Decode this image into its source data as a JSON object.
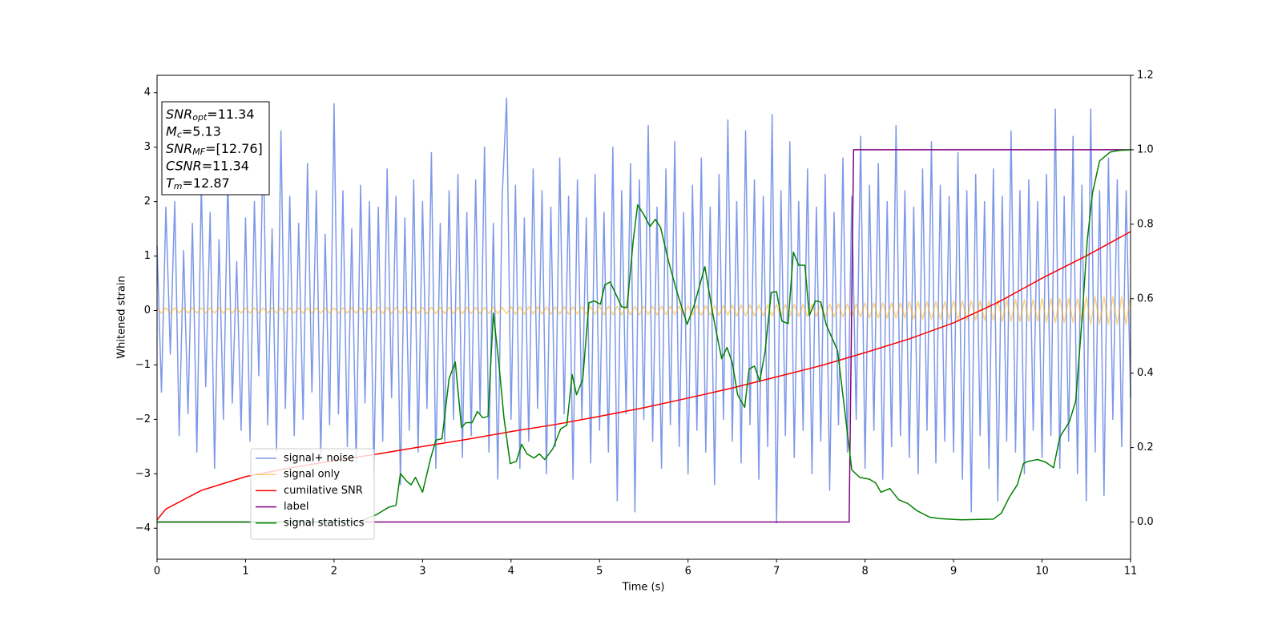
{
  "chart_data": {
    "type": "line",
    "xlabel": "Time (s)",
    "ylabel": "Whitened strain",
    "xlim": [
      0,
      11
    ],
    "ylim": [
      -4.57,
      4.32
    ],
    "y2lim": [
      -0.1,
      1.2
    ],
    "xticks": [
      0,
      1,
      2,
      3,
      4,
      5,
      6,
      7,
      8,
      9,
      10,
      11
    ],
    "yticks": [
      {
        "value": -4,
        "label": "−4"
      },
      {
        "value": -3,
        "label": "−3"
      },
      {
        "value": -2,
        "label": "−2"
      },
      {
        "value": -1,
        "label": "−1"
      },
      0,
      1,
      2,
      3,
      4
    ],
    "y2ticks": [
      {
        "value": 0,
        "label": "0.0"
      },
      0.2,
      0.4,
      0.6,
      0.8,
      {
        "value": 1,
        "label": "1.0"
      },
      1.2
    ],
    "legend": "lower left",
    "annotation": [
      {
        "main": "SNR",
        "sub": "opt",
        "rest": "=11.34"
      },
      {
        "main": "M",
        "sub": "c",
        "rest": "=5.13"
      },
      {
        "main": "SNR",
        "sub": "MF",
        "rest": "=[12.76]"
      },
      {
        "main": "CSNR",
        "rest": "=11.34"
      },
      {
        "main": "T",
        "sub": "m",
        "rest": "=12.87"
      }
    ],
    "x": [
      0,
      0.05,
      0.1,
      0.15,
      0.2,
      0.25,
      0.3,
      0.35,
      0.4,
      0.45,
      0.5,
      0.55,
      0.6,
      0.65,
      0.7,
      0.75,
      0.8,
      0.85,
      0.9,
      0.95,
      1,
      1.05,
      1.1,
      1.15,
      1.2,
      1.25,
      1.3,
      1.35,
      1.4,
      1.45,
      1.5,
      1.55,
      1.6,
      1.65,
      1.7,
      1.75,
      1.8,
      1.85,
      1.9,
      1.95,
      2,
      2.05,
      2.1,
      2.15,
      2.2,
      2.25,
      2.3,
      2.35,
      2.4,
      2.45,
      2.5,
      2.55,
      2.6,
      2.65,
      2.7,
      2.75,
      2.8,
      2.85,
      2.9,
      2.95,
      3,
      3.05,
      3.1,
      3.15,
      3.2,
      3.25,
      3.3,
      3.35,
      3.4,
      3.45,
      3.5,
      3.55,
      3.6,
      3.65,
      3.7,
      3.75,
      3.8,
      3.85,
      3.9,
      3.95,
      4,
      4.05,
      4.1,
      4.15,
      4.2,
      4.25,
      4.3,
      4.35,
      4.4,
      4.45,
      4.5,
      4.55,
      4.6,
      4.65,
      4.7,
      4.75,
      4.8,
      4.85,
      4.9,
      4.95,
      5,
      5.05,
      5.1,
      5.15,
      5.2,
      5.25,
      5.3,
      5.35,
      5.4,
      5.45,
      5.5,
      5.55,
      5.6,
      5.65,
      5.7,
      5.75,
      5.8,
      5.85,
      5.9,
      5.95,
      6,
      6.05,
      6.1,
      6.15,
      6.2,
      6.25,
      6.3,
      6.35,
      6.4,
      6.45,
      6.5,
      6.55,
      6.6,
      6.65,
      6.7,
      6.75,
      6.8,
      6.85,
      6.9,
      6.95,
      7,
      7.05,
      7.1,
      7.15,
      7.2,
      7.25,
      7.3,
      7.35,
      7.4,
      7.45,
      7.5,
      7.55,
      7.6,
      7.65,
      7.7,
      7.75,
      7.8,
      7.85,
      7.9,
      7.95,
      8,
      8.05,
      8.1,
      8.15,
      8.2,
      8.25,
      8.3,
      8.35,
      8.4,
      8.45,
      8.5,
      8.55,
      8.6,
      8.65,
      8.7,
      8.75,
      8.8,
      8.85,
      8.9,
      8.95,
      9,
      9.05,
      9.1,
      9.15,
      9.2,
      9.25,
      9.3,
      9.35,
      9.4,
      9.45,
      9.5,
      9.55,
      9.6,
      9.65,
      9.7,
      9.75,
      9.8,
      9.85,
      9.9,
      9.95,
      10,
      10.05,
      10.1,
      10.15,
      10.2,
      10.25,
      10.3,
      10.35,
      10.4,
      10.45,
      10.5,
      10.55,
      10.6,
      10.65,
      10.7,
      10.75,
      10.8,
      10.85,
      10.9,
      10.95,
      11
    ],
    "series": [
      {
        "name": "signal+ noise",
        "color": "#6f8de6",
        "opacity": 0.9,
        "values": [
          1.2,
          -1.5,
          1.9,
          -0.8,
          2.0,
          -2.3,
          1.1,
          -1.9,
          1.6,
          -2.6,
          2.3,
          -1.4,
          1.8,
          -2.9,
          1.3,
          -2.0,
          2.5,
          -1.7,
          0.9,
          -2.2,
          1.7,
          -2.4,
          2.0,
          -1.2,
          3.2,
          -2.1,
          1.5,
          -2.6,
          3.3,
          -1.8,
          2.1,
          -2.3,
          1.6,
          -2.0,
          2.7,
          -1.5,
          2.2,
          -2.7,
          1.4,
          -2.1,
          3.8,
          -1.9,
          2.2,
          -2.5,
          1.5,
          -2.8,
          2.3,
          -1.7,
          2.0,
          -3.0,
          1.9,
          -2.4,
          2.6,
          -1.6,
          2.1,
          -3.2,
          1.7,
          -2.2,
          2.4,
          -2.6,
          2.0,
          -1.8,
          2.9,
          -2.9,
          1.6,
          -2.4,
          2.2,
          -2.0,
          2.5,
          -2.7,
          1.8,
          -2.3,
          2.4,
          -1.9,
          3.0,
          -2.6,
          1.6,
          -3.1,
          2.1,
          3.9,
          -2.0,
          2.3,
          -2.9,
          1.7,
          -2.4,
          2.6,
          -1.8,
          2.2,
          -3.0,
          1.9,
          -2.5,
          2.8,
          -1.9,
          2.1,
          -3.1,
          2.4,
          -2.0,
          1.7,
          -2.8,
          2.5,
          -2.2,
          1.8,
          -2.6,
          3.0,
          -3.5,
          2.2,
          -1.9,
          2.7,
          -3.7,
          2.4,
          -2.0,
          3.4,
          -2.4,
          1.9,
          -2.9,
          2.6,
          -2.1,
          3.1,
          -2.5,
          1.8,
          -3.0,
          2.3,
          -2.2,
          2.8,
          -2.6,
          1.9,
          -3.2,
          2.5,
          -2.0,
          3.5,
          -2.4,
          2.0,
          -2.8,
          3.3,
          -2.1,
          2.4,
          -3.1,
          2.1,
          -2.5,
          3.6,
          -3.9,
          2.2,
          -2.3,
          3.1,
          -2.7,
          2.0,
          -2.2,
          2.6,
          -3.0,
          1.9,
          -2.4,
          2.5,
          -3.3,
          1.8,
          -2.1,
          2.8,
          -2.6,
          2.1,
          -2.0,
          3.2,
          -2.9,
          2.3,
          -2.2,
          2.7,
          -3.1,
          2.0,
          -2.5,
          3.4,
          -2.3,
          2.2,
          -2.7,
          1.9,
          -3.0,
          2.6,
          -2.2,
          3.1,
          -2.8,
          2.3,
          -2.4,
          2.1,
          -2.6,
          2.9,
          -3.1,
          2.2,
          -3.7,
          2.5,
          -2.3,
          2.0,
          -2.9,
          2.6,
          -3.5,
          2.1,
          -2.4,
          3.3,
          -2.6,
          2.2,
          -3.0,
          2.4,
          -2.2,
          2.0,
          -2.7,
          2.5,
          -2.3,
          3.7,
          -2.9,
          2.1,
          -2.4,
          3.2,
          -3.0,
          2.3,
          -3.5,
          3.7,
          -2.6,
          2.2,
          -3.4,
          2.8,
          -2.0,
          2.4,
          -2.5,
          2.2,
          -1.6
        ]
      },
      {
        "name": "signal only",
        "color": "#ffa500",
        "opacity": 0.5,
        "values": [
          0.05,
          -0.05,
          0.05,
          -0.05,
          0.05,
          -0.05,
          0.05,
          -0.05,
          0.05,
          -0.05,
          0.05,
          -0.05,
          0.05,
          -0.05,
          0.05,
          -0.05,
          0.05,
          -0.05,
          0.05,
          -0.05,
          0.05,
          -0.05,
          0.05,
          -0.05,
          0.05,
          -0.05,
          0.05,
          -0.05,
          0.05,
          -0.05,
          0.05,
          -0.05,
          0.05,
          -0.05,
          0.05,
          -0.05,
          0.05,
          -0.05,
          0.05,
          -0.05,
          0.05,
          -0.05,
          0.05,
          -0.05,
          0.05,
          -0.05,
          0.05,
          -0.05,
          0.05,
          -0.05,
          0.06,
          -0.06,
          0.06,
          -0.06,
          0.06,
          -0.06,
          0.06,
          -0.06,
          0.06,
          -0.06,
          0.06,
          -0.06,
          0.06,
          -0.06,
          0.06,
          -0.06,
          0.06,
          -0.06,
          0.06,
          -0.06,
          0.06,
          -0.06,
          0.06,
          -0.06,
          0.06,
          -0.06,
          0.06,
          -0.06,
          0.06,
          -0.06,
          0.07,
          -0.07,
          0.07,
          -0.07,
          0.07,
          -0.07,
          0.07,
          -0.07,
          0.07,
          -0.07,
          0.07,
          -0.07,
          0.07,
          -0.07,
          0.07,
          -0.07,
          0.07,
          -0.07,
          0.07,
          -0.07,
          0.08,
          -0.08,
          0.08,
          -0.08,
          0.08,
          -0.08,
          0.08,
          -0.08,
          0.08,
          -0.08,
          0.08,
          -0.08,
          0.08,
          -0.08,
          0.08,
          -0.08,
          0.08,
          -0.08,
          0.08,
          -0.08,
          0.09,
          -0.09,
          0.09,
          -0.09,
          0.09,
          -0.09,
          0.09,
          -0.09,
          0.09,
          -0.09,
          0.1,
          -0.1,
          0.1,
          -0.1,
          0.1,
          -0.1,
          0.1,
          -0.1,
          0.1,
          -0.1,
          0.11,
          -0.11,
          0.11,
          -0.11,
          0.11,
          -0.11,
          0.11,
          -0.11,
          0.11,
          -0.11,
          0.12,
          -0.12,
          0.12,
          -0.12,
          0.12,
          -0.12,
          0.12,
          -0.12,
          0.12,
          -0.12,
          0.14,
          -0.14,
          0.14,
          -0.14,
          0.14,
          -0.14,
          0.14,
          -0.14,
          0.14,
          -0.14,
          0.16,
          -0.16,
          0.16,
          -0.16,
          0.16,
          -0.16,
          0.16,
          -0.16,
          0.16,
          -0.16,
          0.18,
          -0.18,
          0.18,
          -0.18,
          0.18,
          -0.18,
          0.18,
          -0.18,
          0.18,
          -0.18,
          0.2,
          -0.2,
          0.2,
          -0.2,
          0.2,
          -0.2,
          0.2,
          -0.2,
          0.2,
          -0.2,
          0.22,
          -0.22,
          0.22,
          -0.22,
          0.22,
          -0.22,
          0.22,
          -0.22,
          0.22,
          -0.22,
          0.25,
          -0.25,
          0.25,
          -0.25,
          0.25,
          -0.25,
          0.25,
          -0.25,
          0.25,
          -0.25,
          0.27
        ]
      },
      {
        "name": "cumilative SNR",
        "color": "#ff0000",
        "axis": "y2",
        "x": [
          0,
          0.1,
          0.5,
          1,
          1.5,
          2,
          2.5,
          3,
          3.5,
          4,
          4.5,
          5,
          5.5,
          6,
          6.5,
          7,
          7.5,
          8,
          8.5,
          9,
          9.5,
          10,
          10.5,
          11
        ],
        "values": [
          0.006,
          0.035,
          0.085,
          0.122,
          0.145,
          0.165,
          0.183,
          0.203,
          0.222,
          0.243,
          0.262,
          0.284,
          0.307,
          0.333,
          0.36,
          0.39,
          0.42,
          0.455,
          0.492,
          0.535,
          0.59,
          0.655,
          0.715,
          0.78
        ]
      },
      {
        "name": "label",
        "color": "#800080",
        "axis": "y2",
        "x": [
          0,
          7.82,
          7.87,
          11
        ],
        "values": [
          0,
          0,
          1,
          1
        ]
      },
      {
        "name": "signal statistics",
        "color": "#008000",
        "axis": "y2",
        "x": [
          0,
          2.0,
          2.3,
          2.48,
          2.62,
          2.7,
          2.75,
          2.82,
          2.87,
          2.92,
          3.0,
          3.09,
          3.15,
          3.22,
          3.3,
          3.37,
          3.44,
          3.49,
          3.56,
          3.62,
          3.68,
          3.74,
          3.8,
          3.86,
          3.92,
          3.99,
          4.06,
          4.12,
          4.18,
          4.26,
          4.32,
          4.38,
          4.47,
          4.56,
          4.63,
          4.69,
          4.74,
          4.81,
          4.88,
          4.94,
          5.01,
          5.06,
          5.12,
          5.25,
          5.31,
          5.38,
          5.43,
          5.5,
          5.57,
          5.63,
          5.69,
          5.78,
          5.86,
          5.93,
          5.99,
          6.07,
          6.19,
          6.27,
          6.33,
          6.38,
          6.44,
          6.5,
          6.56,
          6.64,
          6.69,
          6.75,
          6.81,
          6.87,
          6.94,
          7.0,
          7.06,
          7.13,
          7.19,
          7.25,
          7.32,
          7.37,
          7.44,
          7.5,
          7.56,
          7.69,
          7.78,
          7.85,
          7.94,
          8.05,
          8.12,
          8.18,
          8.28,
          8.38,
          8.48,
          8.59,
          8.73,
          8.86,
          9.09,
          9.45,
          9.54,
          9.63,
          9.72,
          9.79,
          9.84,
          9.95,
          10.04,
          10.13,
          10.2,
          10.31,
          10.38,
          10.45,
          10.51,
          10.57,
          10.65,
          10.77,
          10.86,
          11
        ],
        "values": [
          0,
          0,
          0.002,
          0.02,
          0.04,
          0.045,
          0.13,
          0.11,
          0.1,
          0.12,
          0.08,
          0.17,
          0.22,
          0.224,
          0.385,
          0.43,
          0.254,
          0.267,
          0.267,
          0.297,
          0.28,
          0.284,
          0.561,
          0.432,
          0.28,
          0.157,
          0.163,
          0.209,
          0.183,
          0.172,
          0.183,
          0.168,
          0.196,
          0.25,
          0.26,
          0.396,
          0.342,
          0.383,
          0.589,
          0.594,
          0.585,
          0.637,
          0.645,
          0.578,
          0.576,
          0.755,
          0.852,
          0.826,
          0.794,
          0.813,
          0.791,
          0.7,
          0.63,
          0.576,
          0.531,
          0.583,
          0.686,
          0.572,
          0.497,
          0.439,
          0.469,
          0.428,
          0.342,
          0.308,
          0.411,
          0.419,
          0.378,
          0.458,
          0.617,
          0.619,
          0.54,
          0.533,
          0.725,
          0.69,
          0.69,
          0.555,
          0.594,
          0.591,
          0.531,
          0.46,
          0.28,
          0.14,
          0.12,
          0.115,
          0.105,
          0.08,
          0.09,
          0.06,
          0.05,
          0.03,
          0.013,
          0.009,
          0.006,
          0.008,
          0.024,
          0.067,
          0.1,
          0.157,
          0.163,
          0.168,
          0.161,
          0.146,
          0.228,
          0.27,
          0.325,
          0.54,
          0.755,
          0.884,
          0.97,
          0.994,
          0.998,
          1.0
        ]
      }
    ]
  }
}
